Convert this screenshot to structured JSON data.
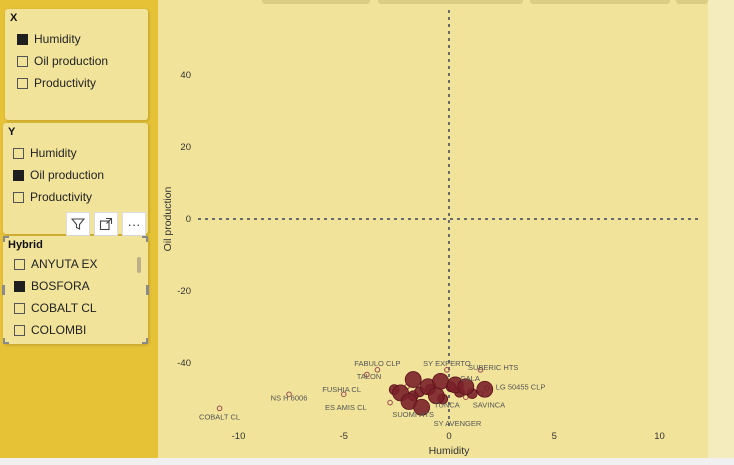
{
  "slicer_x": {
    "title": "X",
    "options": [
      {
        "label": "Humidity",
        "checked": true
      },
      {
        "label": "Oil production",
        "checked": false
      },
      {
        "label": "Productivity",
        "checked": false
      }
    ]
  },
  "slicer_y": {
    "title": "Y",
    "options": [
      {
        "label": "Humidity",
        "checked": false
      },
      {
        "label": "Oil production",
        "checked": true
      },
      {
        "label": "Productivity",
        "checked": false
      }
    ]
  },
  "visual_toolbar": {
    "icons": [
      "filter-icon",
      "focus-mode-icon",
      "more-options-icon"
    ],
    "more_glyph": "···"
  },
  "slicer_hybrid": {
    "title": "Hybrid",
    "options": [
      {
        "label": "ANYUTA EX",
        "checked": false
      },
      {
        "label": "BOSFORA",
        "checked": true
      },
      {
        "label": "COBALT CL",
        "checked": false
      },
      {
        "label": "COLOMBI",
        "checked": false
      }
    ]
  },
  "colors": {
    "dot_fill": "#7a2029",
    "dot_stroke": "#5a1219",
    "small_dot_stroke": "#9a4c52",
    "axis_line": "#6b6b6b",
    "label_text": "#555555"
  },
  "chart_data": {
    "type": "scatter",
    "title": "",
    "xlabel": "Humidity",
    "ylabel": "Oil production",
    "xlim": [
      -12.5,
      12.5
    ],
    "ylim": [
      -57,
      50
    ],
    "xticks": [
      -10,
      -5,
      0,
      5,
      10
    ],
    "yticks": [
      40,
      20,
      0,
      -20,
      -40
    ],
    "grid": false,
    "reference_lines": {
      "x": 0,
      "y": 0
    },
    "labels": [
      {
        "text": "FABULO CLP",
        "x": -3.4,
        "y": -40.8
      },
      {
        "text": "SY EXPERTO",
        "x": -0.1,
        "y": -40.8
      },
      {
        "text": "SUBERIC HTS",
        "x": 2.1,
        "y": -41.9
      },
      {
        "text": "TALON",
        "x": -3.8,
        "y": -44.5
      },
      {
        "text": "CALA",
        "x": 1.0,
        "y": -45.0
      },
      {
        "text": "FUSHIA CL",
        "x": -5.1,
        "y": -48.1
      },
      {
        "text": "LG 50455 CLP",
        "x": 3.4,
        "y": -47.3
      },
      {
        "text": "NS H 6006",
        "x": -7.6,
        "y": -50.4
      },
      {
        "text": "ES AMIS CL",
        "x": -4.9,
        "y": -53.0
      },
      {
        "text": "TUNCA",
        "x": -0.1,
        "y": -52.3
      },
      {
        "text": "SAVINCA",
        "x": 1.9,
        "y": -52.3
      },
      {
        "text": "SUOMI HTS",
        "x": -1.7,
        "y": -55.0
      },
      {
        "text": "COBALT CL",
        "x": -10.9,
        "y": -55.7
      },
      {
        "text": "SY AVENGER",
        "x": 0.4,
        "y": -57.5
      }
    ],
    "points": [
      {
        "x": -10.9,
        "y": -52.6,
        "size": "small"
      },
      {
        "x": -7.6,
        "y": -48.7,
        "size": "small"
      },
      {
        "x": -5.0,
        "y": -48.7,
        "size": "small"
      },
      {
        "x": -3.9,
        "y": -43.2,
        "size": "small"
      },
      {
        "x": -3.4,
        "y": -41.9,
        "size": "small"
      },
      {
        "x": -2.8,
        "y": -51.0,
        "size": "small"
      },
      {
        "x": -0.1,
        "y": -41.9,
        "size": "small"
      },
      {
        "x": 1.5,
        "y": -41.9,
        "size": "small"
      },
      {
        "x": 1.5,
        "y": -48.4,
        "size": "small"
      },
      {
        "x": -2.0,
        "y": -46.6,
        "size": "small"
      },
      {
        "x": 0.8,
        "y": -49.5,
        "size": "small"
      },
      {
        "x": 1.8,
        "y": -47.0,
        "size": "small"
      },
      {
        "x": -1.7,
        "y": -44.6,
        "size": "large"
      },
      {
        "x": -1.0,
        "y": -46.6,
        "size": "large"
      },
      {
        "x": -0.4,
        "y": -45.1,
        "size": "large"
      },
      {
        "x": 0.3,
        "y": -46.1,
        "size": "large"
      },
      {
        "x": 0.8,
        "y": -46.6,
        "size": "large"
      },
      {
        "x": 1.7,
        "y": -47.3,
        "size": "large"
      },
      {
        "x": -2.3,
        "y": -48.3,
        "size": "large"
      },
      {
        "x": -0.6,
        "y": -49.1,
        "size": "large"
      },
      {
        "x": -1.9,
        "y": -50.7,
        "size": "large"
      },
      {
        "x": -1.3,
        "y": -52.3,
        "size": "large"
      },
      {
        "x": -0.9,
        "y": -47.3,
        "size": "medium"
      },
      {
        "x": -1.7,
        "y": -49.1,
        "size": "medium"
      },
      {
        "x": -0.3,
        "y": -50.0,
        "size": "medium"
      },
      {
        "x": 0.5,
        "y": -48.1,
        "size": "medium"
      },
      {
        "x": -2.6,
        "y": -47.4,
        "size": "medium"
      },
      {
        "x": 0.1,
        "y": -46.6,
        "size": "medium"
      },
      {
        "x": 1.1,
        "y": -48.5,
        "size": "medium"
      },
      {
        "x": -1.4,
        "y": -48.0,
        "size": "medium"
      }
    ]
  }
}
